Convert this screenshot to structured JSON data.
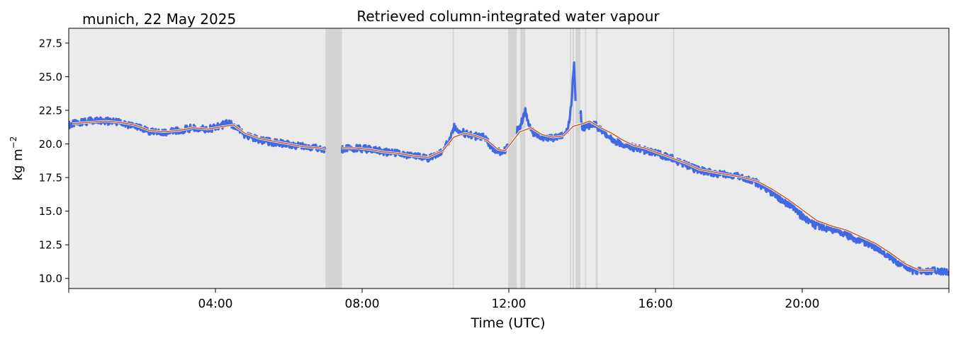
{
  "chart_data": {
    "type": "line",
    "title": "Retrieved column-integrated water vapour",
    "location_date": "munich, 22 May 2025",
    "xlabel": "Time (UTC)",
    "ylabel": "kg m",
    "ylabel_sup": "−2",
    "xlim": [
      0,
      24
    ],
    "ylim": [
      9.25,
      28.6
    ],
    "x_ticks": [
      {
        "x": 4,
        "label": "04:00"
      },
      {
        "x": 8,
        "label": "08:00"
      },
      {
        "x": 12,
        "label": "12:00"
      },
      {
        "x": 16,
        "label": "16:00"
      },
      {
        "x": 20,
        "label": "20:00"
      }
    ],
    "x_minor_ticks": [
      0,
      24
    ],
    "y_ticks": [
      {
        "y": 10.0,
        "label": "10.0"
      },
      {
        "y": 12.5,
        "label": "12.5"
      },
      {
        "y": 15.0,
        "label": "15.0"
      },
      {
        "y": 17.5,
        "label": "17.5"
      },
      {
        "y": 20.0,
        "label": "20.0"
      },
      {
        "y": 22.5,
        "label": "22.5"
      },
      {
        "y": 25.0,
        "label": "25.0"
      },
      {
        "y": 27.5,
        "label": "27.5"
      }
    ],
    "background_color": "#ebebeb",
    "gap_shade_color": "#d3d3d3",
    "gaps": [
      [
        7.0,
        7.45
      ],
      [
        10.47,
        10.5
      ],
      [
        11.98,
        12.22
      ],
      [
        12.31,
        12.45
      ],
      [
        13.67,
        13.7
      ],
      [
        13.74,
        13.78
      ],
      [
        13.82,
        13.95
      ],
      [
        14.08,
        14.11
      ],
      [
        14.37,
        14.42
      ],
      [
        16.48,
        16.51
      ]
    ],
    "series": [
      {
        "color": "#4169e1",
        "style": "raw",
        "x": [
          0.0,
          0.3,
          0.6,
          1.0,
          1.4,
          1.8,
          2.2,
          2.6,
          3.0,
          3.4,
          3.8,
          4.1,
          4.3,
          4.5,
          4.8,
          5.2,
          5.6,
          6.0,
          6.4,
          6.8,
          7.0,
          7.45,
          7.8,
          8.2,
          8.6,
          9.0,
          9.4,
          9.8,
          10.1,
          10.35,
          10.5,
          10.7,
          11.0,
          11.3,
          11.6,
          11.8,
          11.98,
          12.22,
          12.3,
          12.45,
          12.6,
          12.8,
          13.0,
          13.2,
          13.4,
          13.6,
          13.67,
          13.7,
          13.74,
          13.78,
          13.82,
          13.95,
          14.0,
          14.08,
          14.11,
          14.2,
          14.37,
          14.42,
          14.6,
          14.8,
          15.0,
          15.3,
          15.6,
          16.0,
          16.48,
          16.51,
          16.8,
          17.1,
          17.5,
          17.9,
          18.3,
          18.7,
          19.0,
          19.3,
          19.7,
          20.0,
          20.3,
          20.6,
          21.0,
          21.4,
          21.8,
          22.2,
          22.6,
          23.0,
          23.3,
          23.6,
          24.0
        ],
        "y": [
          21.4,
          21.6,
          21.7,
          21.7,
          21.6,
          21.3,
          20.9,
          20.8,
          21.0,
          21.2,
          21.1,
          21.3,
          21.5,
          21.4,
          20.7,
          20.3,
          20.1,
          20.0,
          19.8,
          19.7,
          19.6,
          19.6,
          19.7,
          19.6,
          19.4,
          19.3,
          19.1,
          18.9,
          19.2,
          20.1,
          21.3,
          20.9,
          20.6,
          20.5,
          19.6,
          19.3,
          19.8,
          21.0,
          21.3,
          22.4,
          21.0,
          20.6,
          20.4,
          20.4,
          20.5,
          21.0,
          22.2,
          22.8,
          24.6,
          25.8,
          23.2,
          22.5,
          21.3,
          21.2,
          21.2,
          21.4,
          21.5,
          21.2,
          20.8,
          20.4,
          20.1,
          19.8,
          19.6,
          19.3,
          18.9,
          18.8,
          18.5,
          18.1,
          17.9,
          17.7,
          17.6,
          17.2,
          16.7,
          16.1,
          15.4,
          14.6,
          14.0,
          13.8,
          13.5,
          13.0,
          12.6,
          12.0,
          11.2,
          10.6,
          10.5,
          10.6,
          10.5
        ]
      },
      {
        "color": "#c55a2a",
        "style": "smooth",
        "x": [
          0.1,
          0.5,
          1.0,
          1.4,
          1.8,
          2.2,
          2.6,
          3.0,
          3.4,
          3.8,
          4.2,
          4.5,
          4.8,
          5.2,
          5.6,
          6.0,
          6.4,
          6.8,
          7.0,
          7.45,
          7.8,
          8.2,
          8.6,
          9.0,
          9.4,
          9.8,
          10.2,
          10.5,
          10.8,
          11.1,
          11.4,
          11.7,
          11.9,
          12.1,
          12.3,
          12.6,
          12.9,
          13.2,
          13.5,
          13.75,
          14.0,
          14.2,
          14.5,
          14.8,
          15.1,
          15.4,
          15.7,
          16.0,
          16.4,
          16.8,
          17.2,
          17.6,
          18.0,
          18.4,
          18.8,
          19.2,
          19.6,
          20.0,
          20.4,
          20.8,
          21.2,
          21.6,
          22.0,
          22.4,
          22.8,
          23.2,
          23.6
        ],
        "y": [
          21.5,
          21.6,
          21.7,
          21.6,
          21.4,
          21.0,
          20.9,
          21.0,
          21.2,
          21.1,
          21.3,
          21.4,
          20.8,
          20.4,
          20.2,
          20.0,
          19.8,
          19.7,
          19.6,
          19.7,
          19.7,
          19.6,
          19.4,
          19.3,
          19.1,
          19.0,
          19.5,
          20.5,
          20.8,
          20.6,
          20.3,
          19.6,
          19.5,
          20.2,
          20.9,
          21.2,
          20.7,
          20.5,
          20.6,
          21.3,
          21.5,
          21.7,
          21.2,
          20.8,
          20.3,
          19.9,
          19.7,
          19.4,
          19.0,
          18.6,
          18.1,
          17.9,
          17.7,
          17.5,
          17.2,
          16.6,
          15.9,
          15.1,
          14.3,
          13.9,
          13.6,
          13.1,
          12.6,
          11.9,
          11.1,
          10.6,
          10.6
        ]
      }
    ]
  }
}
